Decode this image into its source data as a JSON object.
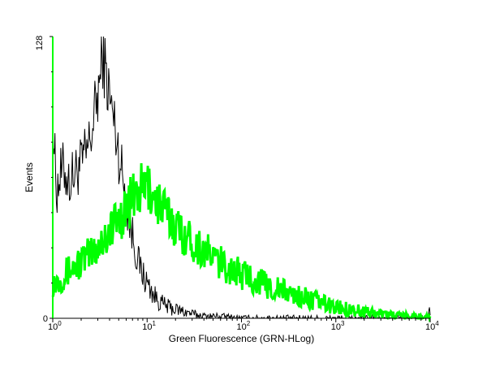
{
  "chart_data": {
    "type": "line",
    "xlabel": "Green Fluorescence (GRN-HLog)",
    "ylabel": "Events",
    "x_scale": "log",
    "xlim": [
      1,
      10000
    ],
    "ylim": [
      0,
      128
    ],
    "x_ticks": [
      {
        "value": 1,
        "base": "10",
        "exp": "0"
      },
      {
        "value": 10,
        "base": "10",
        "exp": "1"
      },
      {
        "value": 100,
        "base": "10",
        "exp": "2"
      },
      {
        "value": 1000,
        "base": "10",
        "exp": "3"
      },
      {
        "value": 10000,
        "base": "10",
        "exp": "4"
      }
    ],
    "y_ticks": [
      {
        "value": 0,
        "label": "0"
      },
      {
        "value": 128,
        "label": "128"
      }
    ],
    "grid": false,
    "series": [
      {
        "color": "#000000",
        "x": [
          1.0,
          1.1,
          1.2,
          1.3,
          1.5,
          1.7,
          2.0,
          2.3,
          2.6,
          2.9,
          3.2,
          3.4,
          3.6,
          3.9,
          4.2,
          4.6,
          5.0,
          5.5,
          6.0,
          6.5,
          7.0,
          7.5,
          8.0,
          9.0,
          10.0,
          11.0,
          12.0,
          14.0,
          17.0,
          20.0,
          25.0,
          30.0,
          40.0,
          60.0,
          100.0,
          300.0,
          1000.0,
          9600.0,
          9800.0,
          10000.0
        ],
        "y": [
          88,
          58,
          65,
          68,
          62,
          66,
          70,
          75,
          85,
          98,
          110,
          122,
          112,
          104,
          95,
          86,
          75,
          65,
          54,
          44,
          38,
          32,
          26,
          20,
          16,
          13,
          10,
          7,
          5,
          4,
          3,
          2,
          1,
          1,
          0,
          0,
          0,
          0,
          8,
          0
        ]
      },
      {
        "color": "#00ff00",
        "x": [
          1.0,
          1.2,
          1.5,
          1.8,
          2.0,
          2.5,
          3.0,
          3.5,
          4.0,
          5.0,
          6.0,
          7.0,
          8.0,
          9.0,
          10.0,
          11.0,
          12.0,
          14.0,
          17.0,
          20.0,
          25.0,
          30.0,
          40.0,
          50.0,
          60.0,
          80.0,
          100.0,
          150.0,
          200.0,
          300.0,
          400.0,
          500.0,
          700.0,
          1000.0,
          1500.0,
          2000.0,
          3000.0,
          5000.0,
          8000.0,
          10000.0
        ],
        "y": [
          16,
          18,
          22,
          24,
          26,
          29,
          33,
          36,
          40,
          45,
          50,
          54,
          57,
          59,
          60,
          58,
          55,
          51,
          46,
          42,
          38,
          35,
          31,
          28,
          25,
          22,
          20,
          17,
          14,
          12,
          10,
          9,
          7,
          5,
          4,
          3,
          2,
          1,
          1,
          0
        ]
      }
    ]
  }
}
